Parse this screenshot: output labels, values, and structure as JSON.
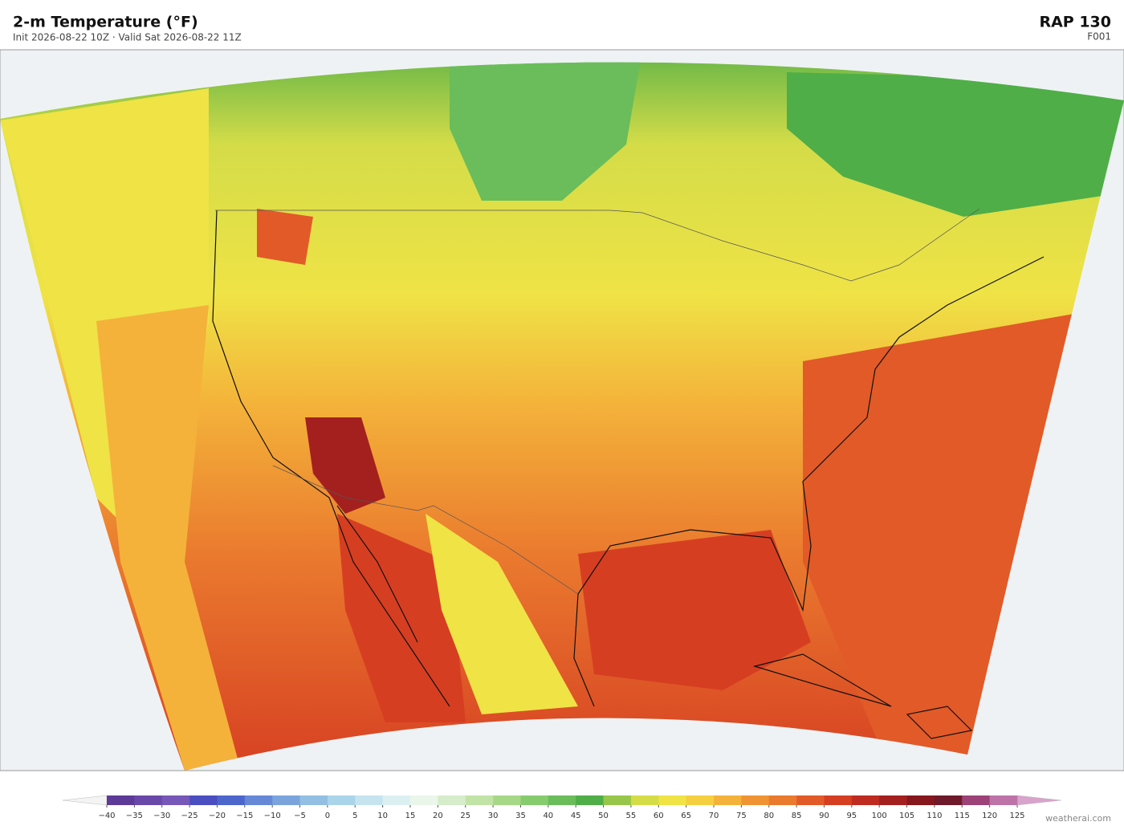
{
  "header": {
    "title": "2-m Temperature  (°F)",
    "subtitle": "Init 2026-08-22 10Z  ·  Valid Sat 2026-08-22 11Z",
    "model": "RAP  130",
    "forecast_hour": "F001"
  },
  "colorbar": {
    "labels": [
      "−40",
      "−35",
      "−30",
      "−25",
      "−20",
      "−15",
      "−10",
      "−5",
      "0",
      "5",
      "10",
      "15",
      "20",
      "25",
      "30",
      "35",
      "40",
      "45",
      "50",
      "55",
      "60",
      "65",
      "70",
      "75",
      "80",
      "85",
      "90",
      "95",
      "100",
      "105",
      "110",
      "115",
      "120",
      "125"
    ],
    "colors": [
      "#5e3a98",
      "#6a48aa",
      "#7758b8",
      "#4a4ec0",
      "#4d66cc",
      "#6688d6",
      "#7ba4dc",
      "#92bfe2",
      "#aad4ea",
      "#c6e4f0",
      "#dcf0f2",
      "#eaf6ea",
      "#d6eccb",
      "#c2e3a6",
      "#a6d887",
      "#86cc6e",
      "#6abd5a",
      "#4fae48",
      "#97c64a",
      "#d4dc48",
      "#efe346",
      "#f5cf40",
      "#f4b23a",
      "#f09433",
      "#ea7a2e",
      "#e25a28",
      "#d63e22",
      "#bf2b20",
      "#a3201f",
      "#86171c",
      "#6e1a2a",
      "#9c4278",
      "#be73a8"
    ]
  },
  "footer": {
    "credit": "weatherai.com"
  }
}
